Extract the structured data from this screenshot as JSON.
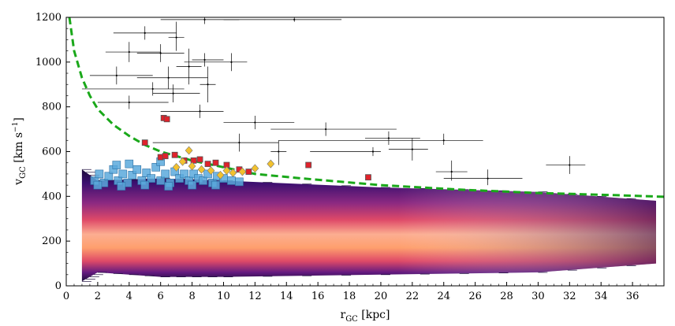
{
  "chart_data": {
    "type": "scatter",
    "xlabel": "r",
    "xlabel_sub": "GC",
    "xlabel_unit": " [kpc]",
    "ylabel": "v",
    "ylabel_sub": "GC",
    "ylabel_unit": " [km s",
    "ylabel_exp": "−1",
    "ylabel_close": "]",
    "xlim": [
      0,
      38
    ],
    "ylim": [
      0,
      1200
    ],
    "xticks": [
      0,
      2,
      4,
      6,
      8,
      10,
      12,
      14,
      16,
      18,
      20,
      22,
      24,
      26,
      28,
      30,
      32,
      34,
      36
    ],
    "yticks": [
      0,
      200,
      400,
      600,
      800,
      1000,
      1200
    ],
    "grid": false,
    "colors": {
      "escape_curve": "#1aa81a",
      "red_square": "#e0222b",
      "yellow_marker": "#f2c12e",
      "blue_square": "#5aa9dc",
      "density_core": "#fcae91",
      "density_outer": "#3b0f6f"
    },
    "series": [
      {
        "kind": "density",
        "description_points": [
          {
            "r": 1.0,
            "v_low": 20,
            "v_high": 520
          },
          {
            "r": 2.0,
            "v_low": 60,
            "v_high": 470
          },
          {
            "r": 6.0,
            "v_low": 40,
            "v_high": 480
          },
          {
            "r": 10.0,
            "v_low": 40,
            "v_high": 470
          },
          {
            "r": 20.0,
            "v_low": 50,
            "v_high": 440
          },
          {
            "r": 30.0,
            "v_low": 60,
            "v_high": 420
          },
          {
            "r": 37.5,
            "v_low": 100,
            "v_high": 380
          }
        ]
      },
      {
        "kind": "escape_curve",
        "points": [
          [
            0.2,
            1200
          ],
          [
            0.5,
            1050
          ],
          [
            1.0,
            930
          ],
          [
            1.5,
            850
          ],
          [
            2.0,
            790
          ],
          [
            3.0,
            720
          ],
          [
            4.0,
            670
          ],
          [
            5.0,
            630
          ],
          [
            6.0,
            600
          ],
          [
            8.0,
            560
          ],
          [
            10.0,
            530
          ],
          [
            12.0,
            500
          ],
          [
            15.0,
            480
          ],
          [
            20.0,
            450
          ],
          [
            25.0,
            430
          ],
          [
            30.0,
            415
          ],
          [
            35.0,
            405
          ],
          [
            38.0,
            398
          ]
        ]
      },
      {
        "kind": "red_squares",
        "points": [
          [
            6.2,
            750
          ],
          [
            6.4,
            745
          ],
          [
            5.0,
            640
          ],
          [
            6.0,
            575
          ],
          [
            6.3,
            580
          ],
          [
            6.9,
            585
          ],
          [
            7.5,
            560
          ],
          [
            8.1,
            560
          ],
          [
            8.5,
            565
          ],
          [
            9.0,
            545
          ],
          [
            9.5,
            550
          ],
          [
            10.2,
            540
          ],
          [
            11.0,
            520
          ],
          [
            11.6,
            510
          ],
          [
            15.4,
            540
          ],
          [
            19.2,
            485
          ]
        ]
      },
      {
        "kind": "yellow_markers",
        "points": [
          [
            7.8,
            605
          ],
          [
            7.4,
            555
          ],
          [
            7.0,
            530
          ],
          [
            8.0,
            535
          ],
          [
            8.6,
            520
          ],
          [
            9.2,
            515
          ],
          [
            10.2,
            515
          ],
          [
            10.6,
            505
          ],
          [
            11.2,
            510
          ],
          [
            12.0,
            525
          ],
          [
            13.0,
            545
          ],
          [
            9.8,
            495
          ]
        ]
      },
      {
        "kind": "blue_squares",
        "points": [
          [
            1.8,
            470
          ],
          [
            2.1,
            500
          ],
          [
            2.4,
            460
          ],
          [
            2.7,
            490
          ],
          [
            3.0,
            520
          ],
          [
            3.3,
            470
          ],
          [
            3.6,
            500
          ],
          [
            3.9,
            460
          ],
          [
            4.2,
            495
          ],
          [
            4.5,
            520
          ],
          [
            4.8,
            470
          ],
          [
            5.1,
            505
          ],
          [
            5.4,
            480
          ],
          [
            5.7,
            530
          ],
          [
            6.0,
            470
          ],
          [
            6.3,
            500
          ],
          [
            6.6,
            460
          ],
          [
            6.9,
            510
          ],
          [
            7.2,
            480
          ],
          [
            7.5,
            500
          ],
          [
            7.8,
            470
          ],
          [
            8.1,
            500
          ],
          [
            8.4,
            480
          ],
          [
            8.7,
            470
          ],
          [
            9.0,
            500
          ],
          [
            9.3,
            460
          ],
          [
            9.6,
            490
          ],
          [
            10.0,
            480
          ],
          [
            10.5,
            470
          ],
          [
            11.0,
            465
          ],
          [
            2.0,
            450
          ],
          [
            3.5,
            445
          ],
          [
            5.0,
            450
          ],
          [
            6.5,
            445
          ],
          [
            8.0,
            450
          ],
          [
            9.5,
            450
          ],
          [
            4.0,
            545
          ],
          [
            6.0,
            555
          ],
          [
            3.2,
            540
          ]
        ]
      },
      {
        "kind": "error_bar_points",
        "points": [
          [
            8.8,
            1190,
            6.0,
            11.0,
            1170,
            1210
          ],
          [
            14.5,
            1190,
            10.0,
            17.5,
            1180,
            1200
          ],
          [
            5.0,
            1130,
            3.0,
            7.0,
            1100,
            1160
          ],
          [
            7.0,
            1110,
            6.5,
            7.5,
            1050,
            1180
          ],
          [
            4.0,
            1045,
            2.5,
            6.0,
            1000,
            1090
          ],
          [
            6.0,
            1040,
            4.5,
            7.5,
            1000,
            1080
          ],
          [
            8.8,
            1010,
            8.0,
            10.0,
            980,
            1040
          ],
          [
            10.5,
            1000,
            7.5,
            11.5,
            960,
            1040
          ],
          [
            7.8,
            980,
            7.0,
            8.6,
            900,
            1060
          ],
          [
            3.2,
            940,
            1.5,
            5.5,
            900,
            980
          ],
          [
            6.5,
            930,
            4.5,
            9.0,
            880,
            980
          ],
          [
            9.0,
            900,
            8.5,
            9.5,
            820,
            980
          ],
          [
            5.5,
            880,
            1.0,
            7.5,
            850,
            910
          ],
          [
            6.8,
            860,
            5.5,
            8.5,
            820,
            900
          ],
          [
            4.0,
            820,
            2.0,
            6.5,
            790,
            850
          ],
          [
            8.5,
            780,
            6.0,
            10.0,
            750,
            810
          ],
          [
            12.0,
            730,
            10.0,
            14.5,
            700,
            760
          ],
          [
            16.5,
            700,
            13.0,
            21.0,
            670,
            730
          ],
          [
            20.5,
            660,
            19.0,
            22.5,
            630,
            690
          ],
          [
            24.0,
            650,
            13.5,
            26.5,
            630,
            680
          ],
          [
            22.0,
            610,
            20.5,
            23.0,
            560,
            660
          ],
          [
            19.5,
            600,
            15.5,
            20.0,
            580,
            620
          ],
          [
            11.0,
            640,
            5.5,
            13.5,
            600,
            680
          ],
          [
            13.5,
            600,
            13.0,
            14.0,
            540,
            650
          ],
          [
            24.5,
            510,
            23.5,
            25.5,
            470,
            560
          ],
          [
            26.8,
            480,
            24.0,
            29.0,
            450,
            520
          ],
          [
            32.0,
            540,
            30.5,
            33.0,
            500,
            580
          ]
        ]
      }
    ]
  }
}
